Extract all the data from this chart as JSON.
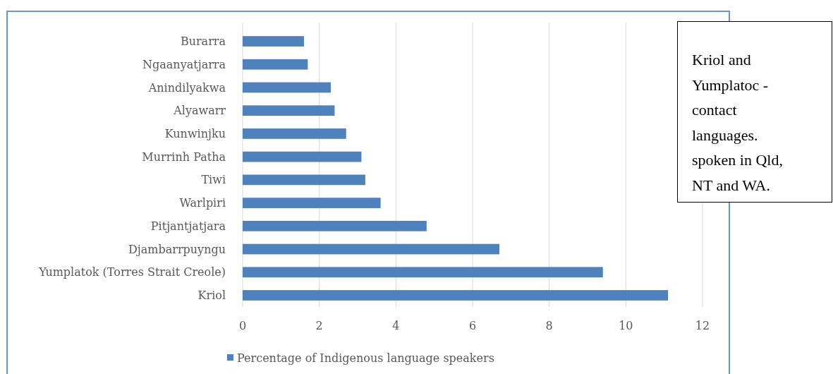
{
  "chart_data": {
    "type": "bar",
    "orientation": "horizontal",
    "categories": [
      "Burarra",
      "Ngaanyatjarra",
      "Anindilyakwa",
      "Alyawarr",
      "Kunwinjku",
      "Murrinh Patha",
      "Tiwi",
      "Warlpiri",
      "Pitjantjatjara",
      "Djambarrpuyngu",
      "Yumplatok (Torres Strait Creole)",
      "Kriol"
    ],
    "series": [
      {
        "name": "Percentage of Indigenous language speakers",
        "color": "#4f81bd",
        "values": [
          1.6,
          1.7,
          2.3,
          2.4,
          2.7,
          3.1,
          3.2,
          3.6,
          4.8,
          6.7,
          9.4,
          11.1
        ]
      }
    ],
    "xlim": [
      0,
      12
    ],
    "xticks": [
      0,
      2,
      4,
      6,
      8,
      10,
      12
    ],
    "grid": "x",
    "legend": "bottom",
    "annotations": [
      "Kriol and Yumplatoc - contact languages. spoken in Qld, NT and WA."
    ]
  }
}
